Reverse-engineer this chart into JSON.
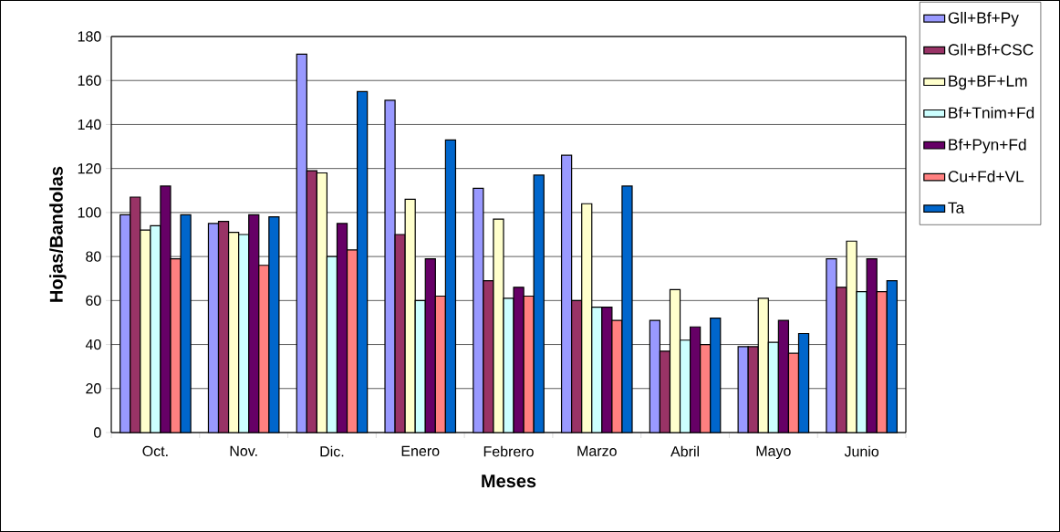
{
  "chart_data": {
    "type": "bar",
    "xlabel": "Meses",
    "ylabel": "Hojas/Bandolas",
    "categories": [
      "Oct.",
      "Nov.",
      "Dic.",
      "Enero",
      "Febrero",
      "Marzo",
      "Abril",
      "Mayo",
      "Junio"
    ],
    "ylim": [
      0,
      180
    ],
    "yticks": [
      0,
      20,
      40,
      60,
      80,
      100,
      120,
      140,
      160,
      180
    ],
    "grid": "y",
    "legend": "right",
    "series": [
      {
        "name": "Gll+Bf+Py",
        "color": "#9999ff",
        "values": [
          99,
          95,
          172,
          151,
          111,
          126,
          51,
          39,
          79
        ]
      },
      {
        "name": "Gll+Bf+CSC",
        "color": "#993366",
        "values": [
          107,
          96,
          119,
          90,
          69,
          60,
          37,
          39,
          66
        ]
      },
      {
        "name": "Bg+BF+Lm",
        "color": "#ffffcc",
        "values": [
          92,
          91,
          118,
          106,
          97,
          104,
          65,
          61,
          87
        ]
      },
      {
        "name": "Bf+Tnim+Fd",
        "color": "#ccffff",
        "values": [
          94,
          90,
          80,
          60,
          61,
          57,
          42,
          41,
          64
        ]
      },
      {
        "name": "Bf+Pyn+Fd",
        "color": "#660066",
        "values": [
          112,
          99,
          95,
          79,
          66,
          57,
          48,
          51,
          79
        ]
      },
      {
        "name": "Cu+Fd+VL",
        "color": "#ff8080",
        "values": [
          79,
          76,
          83,
          62,
          62,
          51,
          40,
          36,
          64
        ]
      },
      {
        "name": "Ta",
        "color": "#0066cc",
        "values": [
          99,
          98,
          155,
          133,
          117,
          112,
          52,
          45,
          69
        ]
      }
    ]
  }
}
